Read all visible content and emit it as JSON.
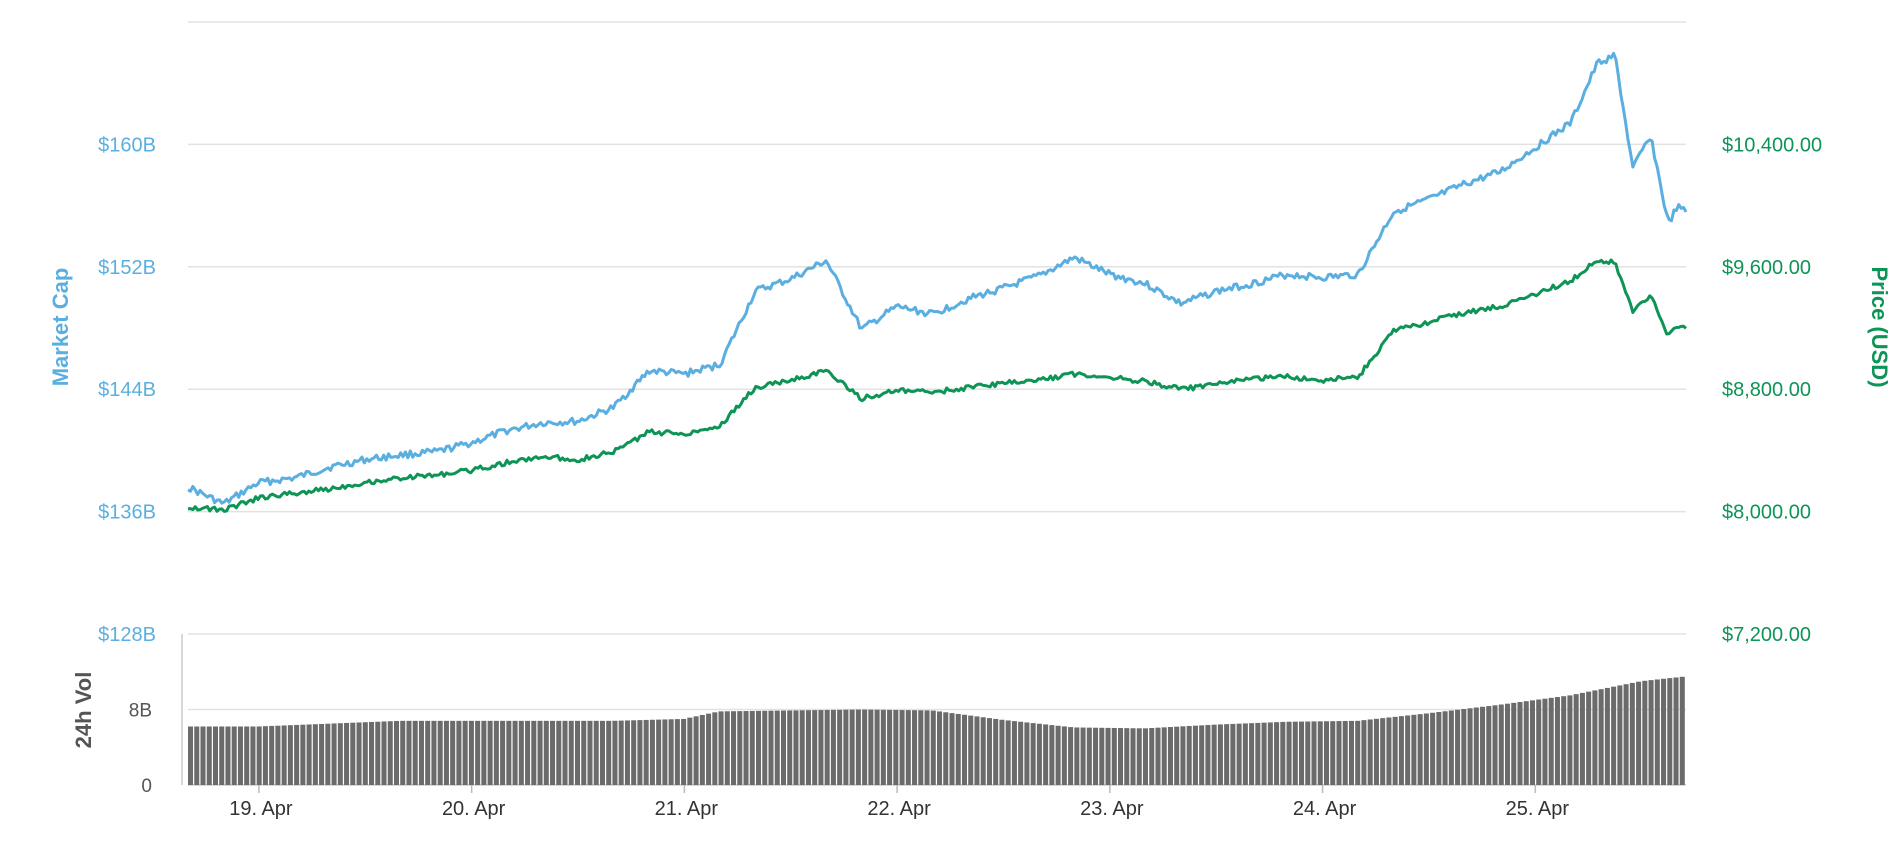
{
  "chart_data": {
    "type": "line",
    "grid": true,
    "x_axis": {
      "type": "datetime",
      "tick_labels": [
        "19. Apr",
        "20. Apr",
        "21. Apr",
        "22. Apr",
        "23. Apr",
        "24. Apr",
        "25. Apr"
      ],
      "range": [
        "2018-04-18T16:00",
        "2018-04-25T17:00"
      ]
    },
    "y_axis_left": {
      "label": "Market Cap",
      "tick_labels": [
        "$128B",
        "$136B",
        "$144B",
        "$152B",
        "$160B"
      ],
      "ticks": [
        128,
        136,
        144,
        152,
        160
      ],
      "range": [
        128,
        168
      ],
      "unit": "USD billions",
      "color": "#5aafe0"
    },
    "y_axis_right": {
      "label": "Price (USD)",
      "tick_labels": [
        "$7,200.00",
        "$8,000.00",
        "$8,800.00",
        "$9,600.00",
        "$10,400.00"
      ],
      "ticks": [
        7200,
        8000,
        8800,
        9600,
        10400
      ],
      "range": [
        7200,
        11200
      ],
      "unit": "USD",
      "color": "#0d9456"
    },
    "volume_axis": {
      "label": "24h Vol",
      "tick_labels": [
        "0",
        "8B"
      ],
      "ticks": [
        0,
        8
      ],
      "range": [
        0,
        16
      ],
      "unit": "USD billions",
      "color": "#666666"
    },
    "series": [
      {
        "name": "Market Cap",
        "axis": "left",
        "color": "#5aafe0",
        "points": [
          [
            "2018-04-18T16:00",
            137.6
          ],
          [
            "2018-04-18T20:00",
            136.5
          ],
          [
            "2018-04-19T00:00",
            137.9
          ],
          [
            "2018-04-19T04:00",
            138.2
          ],
          [
            "2018-04-19T08:00",
            138.9
          ],
          [
            "2018-04-19T12:00",
            139.4
          ],
          [
            "2018-04-19T16:00",
            139.7
          ],
          [
            "2018-04-19T20:00",
            139.9
          ],
          [
            "2018-04-20T00:00",
            140.5
          ],
          [
            "2018-04-20T04:00",
            141.3
          ],
          [
            "2018-04-20T08:00",
            141.8
          ],
          [
            "2018-04-20T12:00",
            141.9
          ],
          [
            "2018-04-20T16:00",
            142.8
          ],
          [
            "2018-04-20T20:00",
            145.2
          ],
          [
            "2018-04-21T00:00",
            145.0
          ],
          [
            "2018-04-21T04:00",
            145.6
          ],
          [
            "2018-04-21T08:00",
            150.4
          ],
          [
            "2018-04-21T12:00",
            151.2
          ],
          [
            "2018-04-21T16:00",
            152.4
          ],
          [
            "2018-04-21T20:00",
            147.9
          ],
          [
            "2018-04-22T00:00",
            149.4
          ],
          [
            "2018-04-22T04:00",
            148.9
          ],
          [
            "2018-04-22T08:00",
            149.9
          ],
          [
            "2018-04-22T12:00",
            150.6
          ],
          [
            "2018-04-22T16:00",
            151.4
          ],
          [
            "2018-04-22T20:00",
            152.6
          ],
          [
            "2018-04-23T00:00",
            151.5
          ],
          [
            "2018-04-23T04:00",
            150.9
          ],
          [
            "2018-04-23T08:00",
            149.6
          ],
          [
            "2018-04-23T12:00",
            150.4
          ],
          [
            "2018-04-23T16:00",
            150.9
          ],
          [
            "2018-04-23T20:00",
            151.5
          ],
          [
            "2018-04-24T00:00",
            151.3
          ],
          [
            "2018-04-24T04:00",
            151.5
          ],
          [
            "2018-04-24T08:00",
            155.6
          ],
          [
            "2018-04-24T12:00",
            156.4
          ],
          [
            "2018-04-24T16:00",
            157.4
          ],
          [
            "2018-04-24T20:00",
            158.2
          ],
          [
            "2018-04-25T00:00",
            159.8
          ],
          [
            "2018-04-25T04:00",
            161.4
          ],
          [
            "2018-04-25T07:00",
            165.3
          ],
          [
            "2018-04-25T09:00",
            165.8
          ],
          [
            "2018-04-25T11:00",
            158.4
          ],
          [
            "2018-04-25T13:00",
            160.6
          ],
          [
            "2018-04-25T15:00",
            154.8
          ],
          [
            "2018-04-25T16:00",
            155.9
          ],
          [
            "2018-04-25T17:00",
            155.6
          ]
        ]
      },
      {
        "name": "Price (USD)",
        "axis": "right",
        "color": "#0d9456",
        "points": [
          [
            "2018-04-18T16:00",
            8030
          ],
          [
            "2018-04-18T20:00",
            8010
          ],
          [
            "2018-04-19T00:00",
            8090
          ],
          [
            "2018-04-19T04:00",
            8120
          ],
          [
            "2018-04-19T08:00",
            8150
          ],
          [
            "2018-04-19T12:00",
            8190
          ],
          [
            "2018-04-19T16:00",
            8220
          ],
          [
            "2018-04-19T20:00",
            8240
          ],
          [
            "2018-04-20T00:00",
            8270
          ],
          [
            "2018-04-20T04:00",
            8320
          ],
          [
            "2018-04-20T08:00",
            8360
          ],
          [
            "2018-04-20T12:00",
            8340
          ],
          [
            "2018-04-20T16:00",
            8390
          ],
          [
            "2018-04-20T20:00",
            8520
          ],
          [
            "2018-04-21T00:00",
            8510
          ],
          [
            "2018-04-21T04:00",
            8560
          ],
          [
            "2018-04-21T08:00",
            8810
          ],
          [
            "2018-04-21T12:00",
            8860
          ],
          [
            "2018-04-21T16:00",
            8920
          ],
          [
            "2018-04-21T20:00",
            8740
          ],
          [
            "2018-04-22T00:00",
            8790
          ],
          [
            "2018-04-22T04:00",
            8780
          ],
          [
            "2018-04-22T08:00",
            8810
          ],
          [
            "2018-04-22T12:00",
            8840
          ],
          [
            "2018-04-22T16:00",
            8860
          ],
          [
            "2018-04-22T20:00",
            8900
          ],
          [
            "2018-04-23T00:00",
            8880
          ],
          [
            "2018-04-23T04:00",
            8850
          ],
          [
            "2018-04-23T08:00",
            8800
          ],
          [
            "2018-04-23T12:00",
            8830
          ],
          [
            "2018-04-23T16:00",
            8870
          ],
          [
            "2018-04-23T20:00",
            8880
          ],
          [
            "2018-04-24T00:00",
            8860
          ],
          [
            "2018-04-24T04:00",
            8880
          ],
          [
            "2018-04-24T08:00",
            9180
          ],
          [
            "2018-04-24T12:00",
            9240
          ],
          [
            "2018-04-24T16:00",
            9300
          ],
          [
            "2018-04-24T20:00",
            9340
          ],
          [
            "2018-04-25T00:00",
            9420
          ],
          [
            "2018-04-25T04:00",
            9510
          ],
          [
            "2018-04-25T07:00",
            9640
          ],
          [
            "2018-04-25T09:00",
            9630
          ],
          [
            "2018-04-25T11:00",
            9300
          ],
          [
            "2018-04-25T13:00",
            9420
          ],
          [
            "2018-04-25T15:00",
            9150
          ],
          [
            "2018-04-25T16:00",
            9220
          ],
          [
            "2018-04-25T17:00",
            9210
          ]
        ]
      },
      {
        "name": "24h Vol",
        "axis": "volume",
        "type": "bar",
        "color": "#6b6b6b",
        "points": [
          [
            "2018-04-18T16:00",
            6.2
          ],
          [
            "2018-04-19T00:00",
            6.2
          ],
          [
            "2018-04-19T08:00",
            6.5
          ],
          [
            "2018-04-19T16:00",
            6.8
          ],
          [
            "2018-04-20T00:00",
            6.8
          ],
          [
            "2018-04-20T08:00",
            6.8
          ],
          [
            "2018-04-20T16:00",
            6.8
          ],
          [
            "2018-04-21T00:00",
            7.0
          ],
          [
            "2018-04-21T04:00",
            7.8
          ],
          [
            "2018-04-21T12:00",
            7.9
          ],
          [
            "2018-04-21T20:00",
            8.0
          ],
          [
            "2018-04-22T04:00",
            7.9
          ],
          [
            "2018-04-22T12:00",
            6.9
          ],
          [
            "2018-04-22T20:00",
            6.1
          ],
          [
            "2018-04-23T04:00",
            6.0
          ],
          [
            "2018-04-23T12:00",
            6.4
          ],
          [
            "2018-04-23T20:00",
            6.7
          ],
          [
            "2018-04-24T04:00",
            6.8
          ],
          [
            "2018-04-24T12:00",
            7.6
          ],
          [
            "2018-04-24T20:00",
            8.5
          ],
          [
            "2018-04-25T04:00",
            9.5
          ],
          [
            "2018-04-25T12:00",
            11.0
          ],
          [
            "2018-04-25T17:00",
            11.5
          ]
        ]
      }
    ]
  }
}
